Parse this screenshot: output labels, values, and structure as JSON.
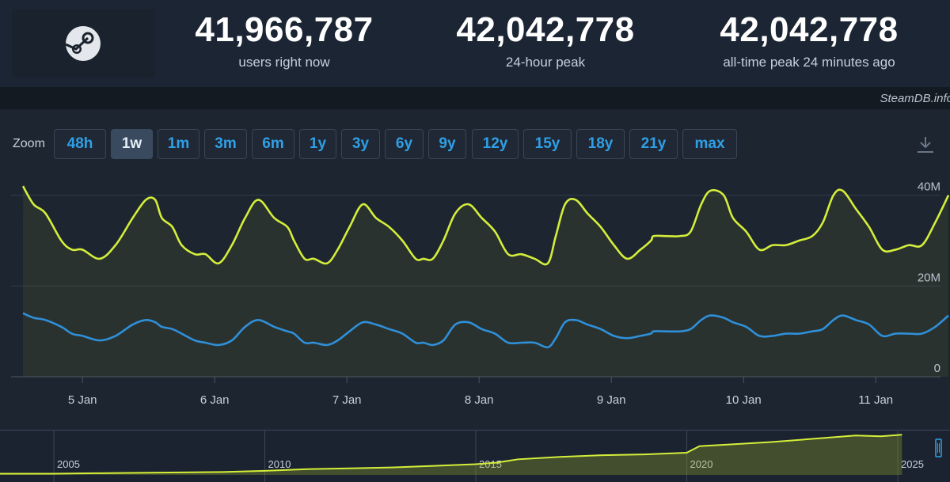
{
  "stats": {
    "users_now": "41,966,787",
    "users_now_label": "users right now",
    "peak_24h": "42,042,778",
    "peak_24h_label": "24-hour peak",
    "peak_all": "42,042,778",
    "peak_all_label": "all-time peak 24 minutes ago"
  },
  "logo": "steam-logo-icon",
  "credit": "SteamDB.info",
  "zoom": {
    "label": "Zoom",
    "buttons": [
      "48h",
      "1w",
      "1m",
      "3m",
      "6m",
      "1y",
      "3y",
      "6y",
      "9y",
      "12y",
      "15y",
      "18y",
      "21y",
      "max"
    ],
    "active": "1w"
  },
  "colors": {
    "users_line": "#d4ee3a",
    "ingame_line": "#2f8fd8",
    "background": "#1d2531",
    "accent": "#2fa0e6"
  },
  "chart_data": [
    {
      "type": "line",
      "x_ticks": [
        "5 Jan",
        "6 Jan",
        "7 Jan",
        "8 Jan",
        "9 Jan",
        "10 Jan",
        "11 Jan"
      ],
      "y_ticks": [
        "0",
        "20M",
        "40M"
      ],
      "ylim": [
        0,
        45
      ],
      "x_unit": "days",
      "grid": true,
      "series": [
        {
          "color": "#d4ee3a",
          "x": [
            4.55,
            4.63,
            4.72,
            4.84,
            4.92,
            5.0,
            5.13,
            5.25,
            5.38,
            5.48,
            5.55,
            5.6,
            5.68,
            5.75,
            5.85,
            5.93,
            6.03,
            6.13,
            6.23,
            6.33,
            6.45,
            6.55,
            6.6,
            6.68,
            6.75,
            6.85,
            6.93,
            7.02,
            7.12,
            7.22,
            7.32,
            7.42,
            7.52,
            7.58,
            7.65,
            7.73,
            7.82,
            7.92,
            8.02,
            8.12,
            8.22,
            8.32,
            8.42,
            8.52,
            8.58,
            8.65,
            8.73,
            8.82,
            8.92,
            9.02,
            9.12,
            9.22,
            9.3,
            9.32,
            9.42,
            9.52,
            9.6,
            9.68,
            9.75,
            9.85,
            9.92,
            10.02,
            10.12,
            10.22,
            10.32,
            10.42,
            10.52,
            10.6,
            10.68,
            10.75,
            10.85,
            10.95,
            11.05,
            11.15,
            11.25,
            11.35,
            11.45,
            11.55
          ],
          "values": [
            42,
            38,
            36,
            30,
            28,
            28,
            26,
            29,
            35,
            39,
            39,
            35,
            33,
            29,
            27,
            27,
            25,
            29,
            35,
            39,
            35,
            33,
            30,
            26,
            26,
            25,
            28,
            33,
            38,
            35,
            33,
            30,
            26,
            26,
            26,
            30,
            36,
            38,
            35,
            32,
            27,
            27,
            26,
            25,
            31,
            38,
            39,
            36,
            33,
            29,
            26,
            28,
            30,
            31,
            31,
            31,
            32,
            38,
            41,
            40,
            35,
            32,
            28,
            29,
            29,
            30,
            31,
            34,
            40,
            41,
            37,
            33,
            28,
            28,
            29,
            29,
            34,
            40
          ]
        },
        {
          "color": "#2f8fd8",
          "x": [
            4.55,
            4.63,
            4.72,
            4.84,
            4.92,
            5.0,
            5.13,
            5.25,
            5.38,
            5.48,
            5.55,
            5.6,
            5.68,
            5.75,
            5.85,
            5.93,
            6.03,
            6.13,
            6.23,
            6.33,
            6.45,
            6.55,
            6.6,
            6.68,
            6.75,
            6.85,
            6.93,
            7.02,
            7.12,
            7.22,
            7.32,
            7.42,
            7.52,
            7.58,
            7.65,
            7.73,
            7.82,
            7.92,
            8.02,
            8.12,
            8.22,
            8.32,
            8.42,
            8.52,
            8.58,
            8.65,
            8.73,
            8.82,
            8.92,
            9.02,
            9.12,
            9.22,
            9.3,
            9.32,
            9.42,
            9.52,
            9.6,
            9.68,
            9.75,
            9.85,
            9.92,
            10.02,
            10.12,
            10.22,
            10.32,
            10.42,
            10.52,
            10.6,
            10.68,
            10.75,
            10.85,
            10.95,
            11.05,
            11.15,
            11.25,
            11.35,
            11.45,
            11.55
          ],
          "values": [
            14,
            13,
            12.5,
            11,
            9.5,
            9,
            8,
            9,
            11.5,
            12.5,
            12,
            11,
            10.5,
            9.5,
            8,
            7.5,
            7,
            8,
            11,
            12.5,
            11,
            10,
            9.5,
            7.5,
            7.5,
            7,
            8,
            10,
            12,
            11.5,
            10.5,
            9.5,
            7.5,
            7.5,
            7,
            8,
            11.5,
            12,
            10.5,
            9.5,
            7.5,
            7.5,
            7.5,
            6.5,
            8.5,
            12,
            12.5,
            11.5,
            10.5,
            9,
            8.5,
            9,
            9.5,
            10,
            10,
            10,
            10.5,
            12.5,
            13.5,
            13,
            12,
            11,
            9,
            9,
            9.5,
            9.5,
            10,
            10.5,
            12.5,
            13.5,
            12.5,
            11.5,
            9,
            9.5,
            9.5,
            9.5,
            11,
            13.5
          ]
        }
      ]
    },
    {
      "type": "area",
      "x_ticks": [
        "2005",
        "2010",
        "2015",
        "2020",
        "2025"
      ],
      "x_unit": "year",
      "series": [
        {
          "color": "#d4ee3a",
          "x": [
            2003.6,
            2005.0,
            2006,
            2007,
            2008,
            2009,
            2010,
            2011,
            2012,
            2013,
            2014,
            2015,
            2015.5,
            2016,
            2017,
            2018,
            2019,
            2020,
            2020.3,
            2021,
            2022,
            2023,
            2024,
            2024.6,
            2025.1
          ],
          "values": [
            1.5,
            1.5,
            2,
            2.5,
            3,
            3.5,
            5,
            7,
            8,
            9,
            11,
            13,
            15,
            19,
            22,
            24,
            25,
            27,
            35,
            37,
            40,
            44,
            48,
            47,
            49
          ]
        }
      ]
    }
  ]
}
